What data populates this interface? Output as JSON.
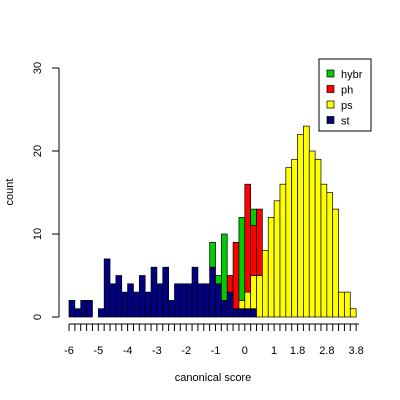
{
  "chart_data": {
    "type": "bar",
    "subtype": "stacked histogram",
    "xlabel": "canonical score",
    "ylabel": "count",
    "ylim": [
      0,
      30
    ],
    "yticks": [
      0,
      10,
      20,
      30
    ],
    "xticks": [
      "-6",
      "-5",
      "-4",
      "-3",
      "-2",
      "-1",
      "0",
      "1",
      "1.8",
      "2.8",
      "3.8"
    ],
    "xtick_values": [
      -6,
      -5,
      -4,
      -3,
      -2,
      -1,
      0,
      1,
      1.8,
      2.8,
      3.8
    ],
    "bin_width": 0.2,
    "bin_start": -6,
    "bin_count": 49,
    "legend_position": "top-right",
    "series": [
      {
        "name": "st",
        "color": "#000080",
        "values": [
          2,
          1,
          2,
          2,
          0,
          1,
          7,
          4,
          5,
          3,
          4,
          3,
          5,
          3,
          6,
          4,
          6,
          2,
          4,
          4,
          4,
          6,
          4,
          4,
          6,
          4,
          2,
          3,
          1,
          1,
          1,
          1,
          0,
          0,
          0,
          0,
          0,
          0,
          0,
          0,
          0,
          0,
          0,
          0,
          0,
          0,
          0,
          0,
          0
        ]
      },
      {
        "name": "ps",
        "color": "#FFFF00",
        "values": [
          0,
          0,
          0,
          0,
          0,
          0,
          0,
          0,
          0,
          0,
          0,
          0,
          0,
          0,
          0,
          0,
          0,
          0,
          0,
          0,
          0,
          0,
          0,
          0,
          0,
          0,
          0,
          0,
          0,
          1,
          2,
          4,
          5,
          8,
          12,
          14,
          16,
          18,
          19,
          22,
          23,
          20,
          19,
          16,
          15,
          13,
          3,
          3,
          1
        ]
      },
      {
        "name": "ph",
        "color": "#FF0000",
        "values": [
          0,
          0,
          0,
          0,
          0,
          0,
          0,
          0,
          0,
          0,
          0,
          0,
          0,
          0,
          0,
          0,
          0,
          0,
          0,
          0,
          0,
          0,
          0,
          0,
          0,
          0,
          0,
          2,
          8,
          0,
          13,
          6,
          8,
          0,
          0,
          0,
          0,
          0,
          0,
          0,
          0,
          0,
          0,
          0,
          0,
          0,
          0,
          0,
          0
        ]
      },
      {
        "name": "hybr",
        "color": "#00CC00",
        "values": [
          0,
          0,
          0,
          0,
          0,
          0,
          0,
          0,
          0,
          0,
          0,
          0,
          0,
          0,
          0,
          0,
          0,
          0,
          0,
          0,
          0,
          0,
          0,
          0,
          3,
          1,
          8,
          0,
          0,
          10,
          0,
          2,
          0,
          0,
          0,
          0,
          0,
          0,
          0,
          0,
          0,
          0,
          0,
          0,
          0,
          0,
          0,
          0,
          0
        ]
      }
    ],
    "legend_order": [
      "hybr",
      "ph",
      "ps",
      "st"
    ]
  }
}
